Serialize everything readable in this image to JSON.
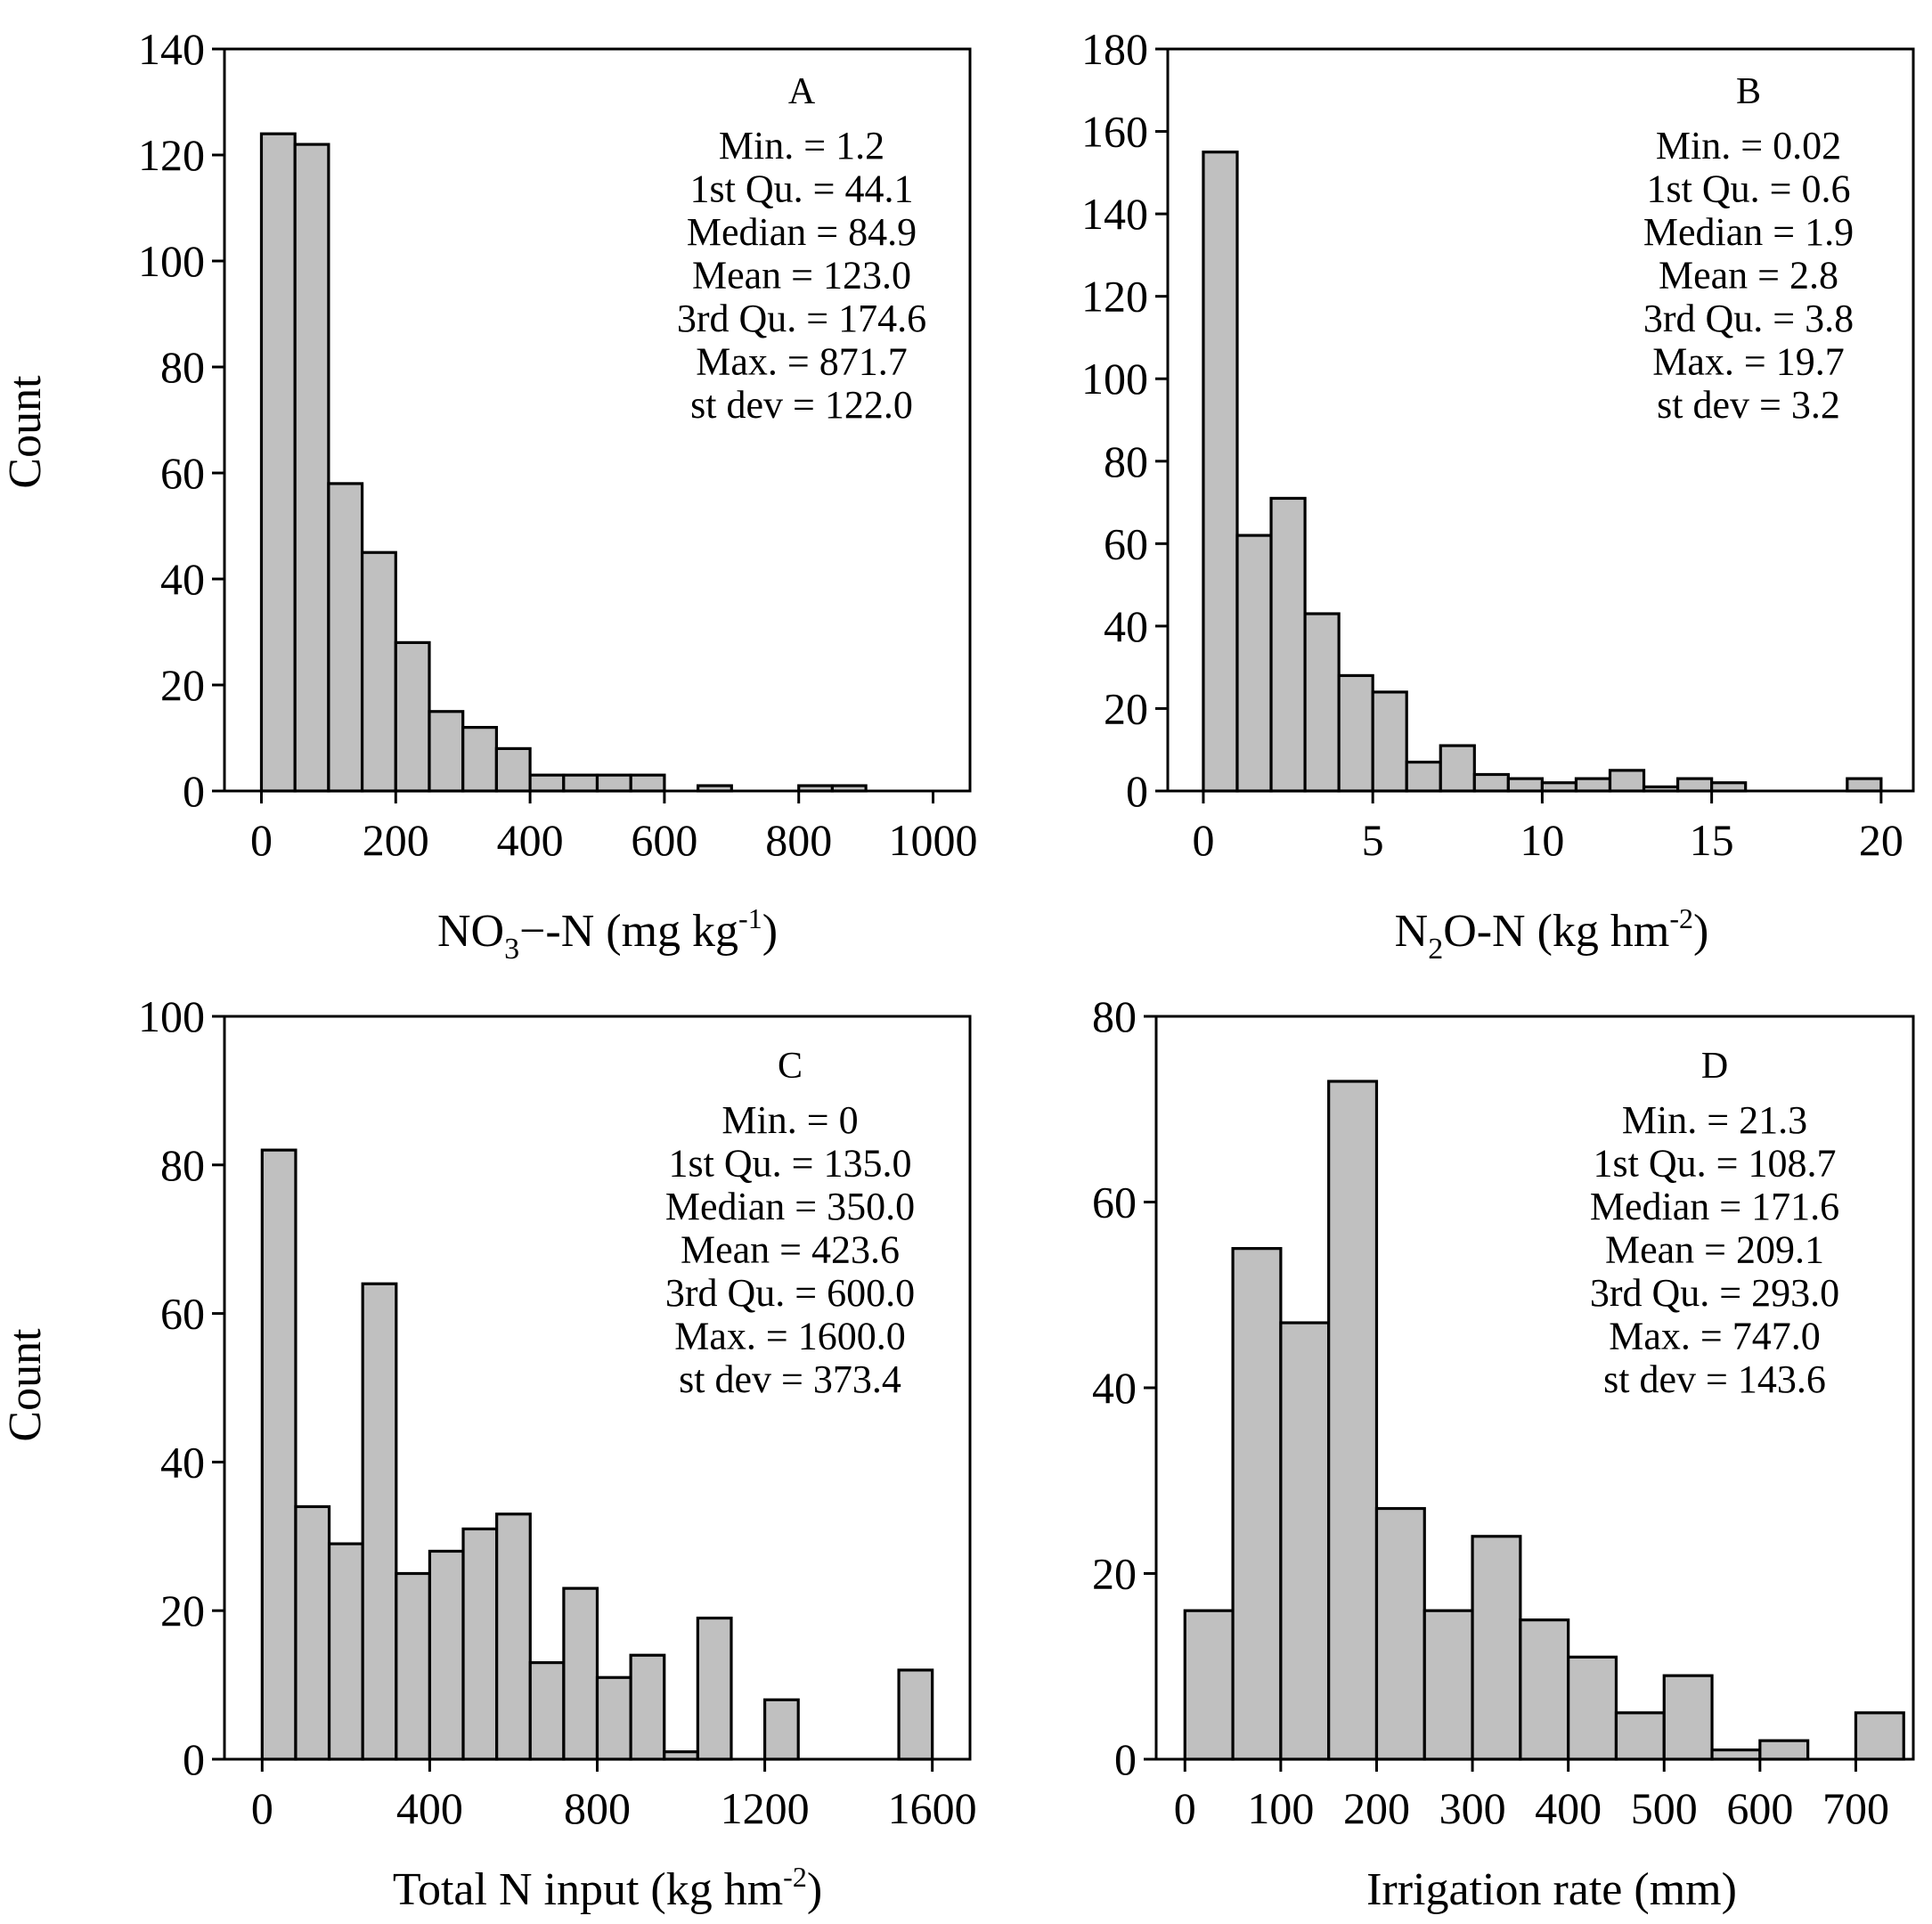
{
  "chart_data": [
    {
      "id": "A",
      "type": "histogram",
      "panel_label": "A",
      "ylabel": "Count",
      "xlabel": {
        "pre": "NO",
        "sub": "3",
        "mid": "−-N (mg kg",
        "sup": "-1",
        "post": ")"
      },
      "xlim": [
        -55,
        1055
      ],
      "ylim": [
        0,
        140
      ],
      "xticks": [
        0,
        200,
        400,
        600,
        800,
        1000
      ],
      "xtick_labels": [
        "0",
        "200",
        "400",
        "600",
        "800",
        "1000"
      ],
      "yticks": [
        0,
        20,
        40,
        60,
        80,
        100,
        120,
        140
      ],
      "ytick_labels": [
        "0",
        "20",
        "40",
        "60",
        "80",
        "100",
        "120",
        "140"
      ],
      "bin_width": 50,
      "bins": [
        {
          "start": 0,
          "count": 124
        },
        {
          "start": 50,
          "count": 122
        },
        {
          "start": 100,
          "count": 58
        },
        {
          "start": 150,
          "count": 45
        },
        {
          "start": 200,
          "count": 28
        },
        {
          "start": 250,
          "count": 15
        },
        {
          "start": 300,
          "count": 12
        },
        {
          "start": 350,
          "count": 8
        },
        {
          "start": 400,
          "count": 3
        },
        {
          "start": 450,
          "count": 3
        },
        {
          "start": 500,
          "count": 3
        },
        {
          "start": 550,
          "count": 3
        },
        {
          "start": 650,
          "count": 1
        },
        {
          "start": 800,
          "count": 1
        },
        {
          "start": 850,
          "count": 1
        }
      ],
      "stats": [
        "Min. = 1.2",
        "1st Qu. = 44.1",
        "Median = 84.9",
        "Mean = 123.0",
        "3rd Qu. = 174.6",
        "Max. = 871.7",
        "st dev = 122.0"
      ]
    },
    {
      "id": "B",
      "type": "histogram",
      "panel_label": "B",
      "ylabel": "",
      "xlabel": {
        "pre": "N",
        "sub": "2",
        "mid": "O-N (kg hm",
        "sup": "-2",
        "post": ")"
      },
      "xlim": [
        -1.05,
        20.95
      ],
      "ylim": [
        0,
        180
      ],
      "xticks": [
        0,
        5,
        10,
        15,
        20
      ],
      "xtick_labels": [
        "0",
        "5",
        "10",
        "15",
        "20"
      ],
      "yticks": [
        0,
        20,
        40,
        60,
        80,
        100,
        120,
        140,
        160,
        180
      ],
      "ytick_labels": [
        "0",
        "20",
        "40",
        "60",
        "80",
        "100",
        "120",
        "140",
        "160",
        "180"
      ],
      "bin_width": 1,
      "bins": [
        {
          "start": 0,
          "count": 155
        },
        {
          "start": 1,
          "count": 62
        },
        {
          "start": 2,
          "count": 71
        },
        {
          "start": 3,
          "count": 43
        },
        {
          "start": 4,
          "count": 28
        },
        {
          "start": 5,
          "count": 24
        },
        {
          "start": 6,
          "count": 7
        },
        {
          "start": 7,
          "count": 11
        },
        {
          "start": 8,
          "count": 4
        },
        {
          "start": 9,
          "count": 3
        },
        {
          "start": 10,
          "count": 2
        },
        {
          "start": 11,
          "count": 3
        },
        {
          "start": 12,
          "count": 5
        },
        {
          "start": 13,
          "count": 1
        },
        {
          "start": 14,
          "count": 3
        },
        {
          "start": 15,
          "count": 2
        },
        {
          "start": 19,
          "count": 3
        }
      ],
      "stats": [
        "Min. = 0.02",
        "1st Qu. = 0.6",
        "Median = 1.9",
        "Mean = 2.8",
        "3rd Qu. = 3.8",
        "Max. = 19.7",
        "st dev = 3.2"
      ]
    },
    {
      "id": "C",
      "type": "histogram",
      "panel_label": "C",
      "ylabel": "Count",
      "xlabel": {
        "pre": "Total N input (kg hm",
        "sub": "",
        "mid": "",
        "sup": "-2",
        "post": ")"
      },
      "xlim": [
        -90,
        1690
      ],
      "ylim": [
        0,
        100
      ],
      "xticks": [
        0,
        400,
        800,
        1200,
        1600
      ],
      "xtick_labels": [
        "0",
        "400",
        "800",
        "1200",
        "1600"
      ],
      "yticks": [
        0,
        20,
        40,
        60,
        80,
        100
      ],
      "ytick_labels": [
        "0",
        "20",
        "40",
        "60",
        "80",
        "100"
      ],
      "bin_width": 80,
      "bins": [
        {
          "start": 0,
          "count": 82
        },
        {
          "start": 80,
          "count": 34
        },
        {
          "start": 160,
          "count": 29
        },
        {
          "start": 240,
          "count": 64
        },
        {
          "start": 320,
          "count": 25
        },
        {
          "start": 400,
          "count": 28
        },
        {
          "start": 480,
          "count": 31
        },
        {
          "start": 560,
          "count": 33
        },
        {
          "start": 640,
          "count": 13
        },
        {
          "start": 720,
          "count": 23
        },
        {
          "start": 800,
          "count": 11
        },
        {
          "start": 880,
          "count": 14
        },
        {
          "start": 960,
          "count": 1
        },
        {
          "start": 1040,
          "count": 19
        },
        {
          "start": 1200,
          "count": 8
        },
        {
          "start": 1520,
          "count": 12
        }
      ],
      "stats": [
        "Min. = 0",
        "1st Qu. = 135.0",
        "Median = 350.0",
        "Mean = 423.6",
        "3rd Qu. = 600.0",
        "Max. = 1600.0",
        "st dev = 373.4"
      ]
    },
    {
      "id": "D",
      "type": "histogram",
      "panel_label": "D",
      "ylabel": "",
      "xlabel": {
        "pre": "Irrigation rate (mm)",
        "sub": "",
        "mid": "",
        "sup": "",
        "post": ""
      },
      "xlim": [
        -30,
        760
      ],
      "ylim": [
        0,
        80
      ],
      "xticks": [
        0,
        100,
        200,
        300,
        400,
        500,
        600,
        700
      ],
      "xtick_labels": [
        "0",
        "100",
        "200",
        "300",
        "400",
        "500",
        "600",
        "700"
      ],
      "yticks": [
        0,
        20,
        40,
        60,
        80
      ],
      "ytick_labels": [
        "0",
        "20",
        "40",
        "60",
        "80"
      ],
      "bin_width": 50,
      "bins": [
        {
          "start": 0,
          "count": 16
        },
        {
          "start": 50,
          "count": 55
        },
        {
          "start": 100,
          "count": 47
        },
        {
          "start": 150,
          "count": 73
        },
        {
          "start": 200,
          "count": 27
        },
        {
          "start": 250,
          "count": 16
        },
        {
          "start": 300,
          "count": 24
        },
        {
          "start": 350,
          "count": 15
        },
        {
          "start": 400,
          "count": 11
        },
        {
          "start": 450,
          "count": 5
        },
        {
          "start": 500,
          "count": 9
        },
        {
          "start": 550,
          "count": 1
        },
        {
          "start": 600,
          "count": 2
        },
        {
          "start": 700,
          "count": 5
        }
      ],
      "stats": [
        "Min. = 21.3",
        "1st Qu. = 108.7",
        "Median = 171.6",
        "Mean = 209.1",
        "3rd Qu. = 293.0",
        "Max. = 747.0",
        "st dev = 143.6"
      ]
    }
  ]
}
